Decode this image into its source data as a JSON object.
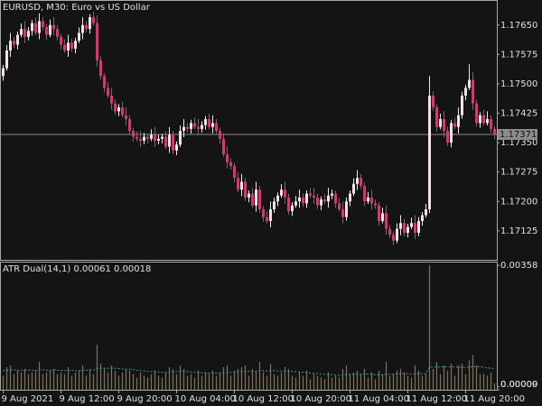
{
  "chart_data": {
    "type": "candlestick",
    "title": "EURUSD, M30:  Euro vs US Dollar",
    "up_color": "#f3e3e8",
    "down_color": "#c4416f",
    "ylim": [
      1.17051,
      1.17714
    ],
    "yticks": [
      {
        "value": 1.1765,
        "label": "1.17650"
      },
      1.17575,
      {
        "value": 1.175,
        "label": "1.17500"
      },
      1.17425,
      {
        "value": 1.1735,
        "label": "1.17350"
      },
      1.17275,
      {
        "value": 1.172,
        "label": "1.17200"
      },
      1.17125
    ],
    "current_price": {
      "value": 1.17371,
      "label": "1.17371"
    },
    "categories": [
      "9 Aug 2021",
      null,
      null,
      null,
      null,
      null,
      null,
      null,
      null,
      null,
      null,
      null,
      null,
      null,
      null,
      null,
      "9 Aug 12:00",
      null,
      null,
      null,
      null,
      null,
      null,
      null,
      null,
      null,
      null,
      null,
      null,
      null,
      null,
      null,
      "9 Aug 20:00",
      null,
      null,
      null,
      null,
      null,
      null,
      null,
      null,
      null,
      null,
      null,
      null,
      null,
      null,
      null,
      "10 Aug 04:00",
      null,
      null,
      null,
      null,
      null,
      null,
      null,
      null,
      null,
      null,
      null,
      null,
      null,
      null,
      null,
      "10 Aug 12:00",
      null,
      null,
      null,
      null,
      null,
      null,
      null,
      null,
      null,
      null,
      null,
      null,
      null,
      null,
      null,
      "10 Aug 20:00",
      null,
      null,
      null,
      null,
      null,
      null,
      null,
      null,
      null,
      null,
      null,
      null,
      null,
      null,
      null,
      "11 Aug 04:00",
      null,
      null,
      null,
      null,
      null,
      null,
      null,
      null,
      null,
      null,
      null,
      null,
      null,
      null,
      null,
      "11 Aug 12:00",
      null,
      null,
      null,
      null,
      null,
      null,
      null,
      null,
      null,
      null,
      null,
      null,
      null,
      null,
      null,
      "11 Aug 20:00",
      null,
      null,
      null,
      null,
      null,
      null,
      null,
      null
    ],
    "candles": [
      [
        1.1752,
        1.17548,
        1.17508,
        1.1754
      ],
      [
        1.1754,
        1.17599,
        1.17534,
        1.17585
      ],
      [
        1.17585,
        1.1763,
        1.17569,
        1.1761
      ],
      [
        1.1761,
        1.1762,
        1.17591,
        1.176
      ],
      [
        1.176,
        1.17633,
        1.17588,
        1.17625
      ],
      [
        1.17625,
        1.17654,
        1.17619,
        1.1764
      ],
      [
        1.1764,
        1.1766,
        1.17604,
        1.1762
      ],
      [
        1.1762,
        1.17645,
        1.17611,
        1.17635
      ],
      [
        1.17635,
        1.17663,
        1.17623,
        1.17655
      ],
      [
        1.17655,
        1.17669,
        1.17624,
        1.1763
      ],
      [
        1.1763,
        1.1768,
        1.17614,
        1.1766
      ],
      [
        1.1766,
        1.1767,
        1.17636,
        1.17645
      ],
      [
        1.17645,
        1.17653,
        1.17613,
        1.17625
      ],
      [
        1.17625,
        1.17664,
        1.17619,
        1.1765
      ],
      [
        1.1765,
        1.1767,
        1.17624,
        1.1764
      ],
      [
        1.1764,
        1.1765,
        1.17611,
        1.1762
      ],
      [
        1.1762,
        1.17628,
        1.17588,
        1.176
      ],
      [
        1.176,
        1.17614,
        1.17579,
        1.17585
      ],
      [
        1.17585,
        1.17625,
        1.17569,
        1.17605
      ],
      [
        1.17605,
        1.17615,
        1.17581,
        1.1759
      ],
      [
        1.1759,
        1.17618,
        1.17578,
        1.1761
      ],
      [
        1.1761,
        1.17644,
        1.17604,
        1.1763
      ],
      [
        1.1763,
        1.1767,
        1.17614,
        1.1765
      ],
      [
        1.1765,
        1.1766,
        1.17631,
        1.1764
      ],
      [
        1.1764,
        1.17678,
        1.17628,
        1.1767
      ],
      [
        1.1767,
        1.17684,
        1.17649,
        1.17655
      ],
      [
        1.17655,
        1.17675,
        1.17544,
        1.1756
      ],
      [
        1.1756,
        1.1757,
        1.17511,
        1.1752
      ],
      [
        1.1752,
        1.17528,
        1.17478,
        1.1749
      ],
      [
        1.1749,
        1.17504,
        1.17464,
        1.1747
      ],
      [
        1.1747,
        1.1749,
        1.17434,
        1.1745
      ],
      [
        1.1745,
        1.1746,
        1.17421,
        1.1743
      ],
      [
        1.1743,
        1.17448,
        1.17418,
        1.1744
      ],
      [
        1.1744,
        1.17454,
        1.17414,
        1.1742
      ],
      [
        1.1742,
        1.1744,
        1.17394,
        1.1741
      ],
      [
        1.1741,
        1.1742,
        1.17371,
        1.1738
      ],
      [
        1.1738,
        1.17388,
        1.17353,
        1.17365
      ],
      [
        1.17365,
        1.17379,
        1.17354,
        1.1736
      ],
      [
        1.1736,
        1.1738,
        1.17339,
        1.17355
      ],
      [
        1.17355,
        1.17375,
        1.17346,
        1.17365
      ],
      [
        1.17365,
        1.17373,
        1.17348,
        1.1736
      ],
      [
        1.1736,
        1.17384,
        1.17354,
        1.1737
      ],
      [
        1.1737,
        1.1739,
        1.17339,
        1.17355
      ],
      [
        1.17355,
        1.1737,
        1.17346,
        1.1736
      ],
      [
        1.1736,
        1.17373,
        1.17348,
        1.17365
      ],
      [
        1.17365,
        1.17379,
        1.17334,
        1.1734
      ],
      [
        1.1734,
        1.1739,
        1.17324,
        1.1737
      ],
      [
        1.1737,
        1.1738,
        1.17321,
        1.1733
      ],
      [
        1.1733,
        1.17353,
        1.17318,
        1.17345
      ],
      [
        1.17345,
        1.17394,
        1.17339,
        1.1738
      ],
      [
        1.1738,
        1.1741,
        1.17364,
        1.1739
      ],
      [
        1.1739,
        1.174,
        1.17376,
        1.17385
      ],
      [
        1.17385,
        1.17408,
        1.17373,
        1.174
      ],
      [
        1.174,
        1.17414,
        1.17384,
        1.1739
      ],
      [
        1.1739,
        1.1741,
        1.17369,
        1.17385
      ],
      [
        1.17385,
        1.17405,
        1.17376,
        1.17395
      ],
      [
        1.17395,
        1.17418,
        1.17383,
        1.1741
      ],
      [
        1.1741,
        1.17424,
        1.17384,
        1.1739
      ],
      [
        1.1739,
        1.1742,
        1.17374,
        1.174
      ],
      [
        1.174,
        1.1741,
        1.17371,
        1.1738
      ],
      [
        1.1738,
        1.17388,
        1.17348,
        1.1736
      ],
      [
        1.1736,
        1.17374,
        1.17314,
        1.1732
      ],
      [
        1.1732,
        1.1734,
        1.17284,
        1.173
      ],
      [
        1.173,
        1.1731,
        1.17281,
        1.1729
      ],
      [
        1.1729,
        1.17298,
        1.17248,
        1.1726
      ],
      [
        1.1726,
        1.17274,
        1.17224,
        1.1723
      ],
      [
        1.1723,
        1.1727,
        1.17214,
        1.1725
      ],
      [
        1.1725,
        1.1726,
        1.17201,
        1.1721
      ],
      [
        1.1721,
        1.17228,
        1.17198,
        1.1722
      ],
      [
        1.1722,
        1.17234,
        1.17184,
        1.1719
      ],
      [
        1.1719,
        1.1725,
        1.17174,
        1.1723
      ],
      [
        1.1723,
        1.1724,
        1.17171,
        1.1718
      ],
      [
        1.1718,
        1.17188,
        1.17148,
        1.1716
      ],
      [
        1.1716,
        1.17174,
        1.17144,
        1.1715
      ],
      [
        1.1715,
        1.172,
        1.17134,
        1.1718
      ],
      [
        1.1718,
        1.1721,
        1.17171,
        1.172
      ],
      [
        1.172,
        1.17223,
        1.17188,
        1.17215
      ],
      [
        1.17215,
        1.17244,
        1.17209,
        1.1723
      ],
      [
        1.1723,
        1.1725,
        1.17194,
        1.1721
      ],
      [
        1.1721,
        1.1722,
        1.17166,
        1.17175
      ],
      [
        1.17175,
        1.17198,
        1.17163,
        1.1719
      ],
      [
        1.1719,
        1.17214,
        1.17184,
        1.172
      ],
      [
        1.172,
        1.1723,
        1.17184,
        1.1721
      ],
      [
        1.1721,
        1.1722,
        1.17186,
        1.17195
      ],
      [
        1.17195,
        1.17228,
        1.17183,
        1.1722
      ],
      [
        1.1722,
        1.17234,
        1.17209,
        1.17215
      ],
      [
        1.17215,
        1.17235,
        1.17194,
        1.1721
      ],
      [
        1.1721,
        1.1722,
        1.17181,
        1.1719
      ],
      [
        1.1719,
        1.17213,
        1.17178,
        1.17205
      ],
      [
        1.17205,
        1.17219,
        1.17194,
        1.172
      ],
      [
        1.172,
        1.17235,
        1.17184,
        1.17215
      ],
      [
        1.17215,
        1.1723,
        1.17206,
        1.1722
      ],
      [
        1.1722,
        1.17228,
        1.17183,
        1.17195
      ],
      [
        1.17195,
        1.17209,
        1.17174,
        1.1718
      ],
      [
        1.1718,
        1.172,
        1.17144,
        1.1716
      ],
      [
        1.1716,
        1.1721,
        1.17151,
        1.172
      ],
      [
        1.172,
        1.17228,
        1.17188,
        1.1722
      ],
      [
        1.1722,
        1.17259,
        1.17214,
        1.17245
      ],
      [
        1.17245,
        1.1728,
        1.17229,
        1.1726
      ],
      [
        1.1726,
        1.1727,
        1.17231,
        1.1724
      ],
      [
        1.1724,
        1.17248,
        1.17188,
        1.172
      ],
      [
        1.172,
        1.17224,
        1.17194,
        1.1721
      ],
      [
        1.1721,
        1.1723,
        1.17179,
        1.17195
      ],
      [
        1.17195,
        1.17205,
        1.17181,
        1.1719
      ],
      [
        1.1719,
        1.17198,
        1.17138,
        1.1715
      ],
      [
        1.1715,
        1.17184,
        1.17144,
        1.1717
      ],
      [
        1.1717,
        1.1719,
        1.17114,
        1.1713
      ],
      [
        1.1713,
        1.1714,
        1.17106,
        1.17115
      ],
      [
        1.17115,
        1.17123,
        1.17088,
        1.171
      ],
      [
        1.171,
        1.17144,
        1.17094,
        1.1713
      ],
      [
        1.1713,
        1.17165,
        1.17114,
        1.17145
      ],
      [
        1.17145,
        1.17155,
        1.17111,
        1.1712
      ],
      [
        1.1712,
        1.17143,
        1.17108,
        1.17135
      ],
      [
        1.17135,
        1.17159,
        1.17129,
        1.17145
      ],
      [
        1.17145,
        1.17165,
        1.17104,
        1.1712
      ],
      [
        1.1712,
        1.1716,
        1.17111,
        1.1715
      ],
      [
        1.1715,
        1.17173,
        1.17138,
        1.17165
      ],
      [
        1.17165,
        1.17194,
        1.17159,
        1.1718
      ],
      [
        1.1718,
        1.1752,
        1.1717,
        1.1747
      ],
      [
        1.1747,
        1.1748,
        1.17431,
        1.1744
      ],
      [
        1.1744,
        1.17448,
        1.17378,
        1.1739
      ],
      [
        1.1739,
        1.17424,
        1.17384,
        1.1741
      ],
      [
        1.1741,
        1.1743,
        1.17364,
        1.1738
      ],
      [
        1.1738,
        1.1739,
        1.17341,
        1.1735
      ],
      [
        1.1735,
        1.17408,
        1.17338,
        1.174
      ],
      [
        1.174,
        1.17414,
        1.17384,
        1.1739
      ],
      [
        1.1739,
        1.1744,
        1.17374,
        1.1742
      ],
      [
        1.1742,
        1.1748,
        1.17411,
        1.1747
      ],
      [
        1.1747,
        1.17498,
        1.17458,
        1.1749
      ],
      [
        1.1749,
        1.1755,
        1.17484,
        1.1751
      ],
      [
        1.1751,
        1.1753,
        1.17434,
        1.1745
      ],
      [
        1.1745,
        1.1746,
        1.17391,
        1.174
      ],
      [
        1.174,
        1.17428,
        1.17388,
        1.1742
      ],
      [
        1.1742,
        1.17434,
        1.17394,
        1.174
      ],
      [
        1.174,
        1.1743,
        1.17394,
        1.1741
      ],
      [
        1.1741,
        1.1742,
        1.17376,
        1.17385
      ],
      [
        1.17385,
        1.17393,
        1.17359,
        1.17371
      ]
    ],
    "indicator": {
      "title": "ATR Dual(14,1) 0.00061 0.00018",
      "ylim": [
        0,
        0.00366
      ],
      "yticks": [
        0.00358,
        {
          "value": 9e-05,
          "label": "0.00009"
        },
        {
          "value": 0,
          "label": "0.00000"
        }
      ],
      "bar_color": "#a5672f",
      "line_color": "#3b9ea3",
      "bars": [
        0.0004,
        0.00065,
        0.0007,
        0.00045,
        0.00055,
        0.0005,
        0.0006,
        0.00045,
        0.0005,
        0.00055,
        0.0008,
        0.00045,
        0.0005,
        0.00055,
        0.0006,
        0.00045,
        0.0005,
        0.00045,
        0.00065,
        0.0004,
        0.0005,
        0.00055,
        0.0007,
        0.0004,
        0.0006,
        0.00045,
        0.0013,
        0.00075,
        0.0006,
        0.0005,
        0.0007,
        0.00055,
        0.0004,
        0.0005,
        0.0006,
        0.00055,
        0.00045,
        0.00035,
        0.0005,
        0.0004,
        0.00035,
        0.00045,
        0.00055,
        0.0004,
        0.00035,
        0.0005,
        0.00065,
        0.0006,
        0.00045,
        0.0007,
        0.0006,
        0.0004,
        0.00045,
        0.00035,
        0.00055,
        0.0004,
        0.0005,
        0.00045,
        0.00055,
        0.0004,
        0.0005,
        0.00065,
        0.0007,
        0.0004,
        0.00055,
        0.0006,
        0.00065,
        0.0007,
        0.0004,
        0.0006,
        0.00055,
        0.0008,
        0.0005,
        0.0004,
        0.00075,
        0.00045,
        0.0004,
        0.0005,
        0.00065,
        0.0006,
        0.0004,
        0.00035,
        0.0005,
        0.0004,
        0.00055,
        0.0003,
        0.00045,
        0.0004,
        0.00035,
        0.0003,
        0.0005,
        0.00035,
        0.0004,
        0.00035,
        0.0006,
        0.0007,
        0.00045,
        0.0005,
        0.00055,
        0.00045,
        0.0006,
        0.00035,
        0.0005,
        0.0003,
        0.00055,
        0.00045,
        0.0008,
        0.0004,
        0.00045,
        0.00055,
        0.0006,
        0.0005,
        0.0004,
        0.00035,
        0.0007,
        0.00055,
        0.0004,
        0.00045,
        0.00358,
        0.0006,
        0.0008,
        0.00045,
        0.0007,
        0.00055,
        0.00075,
        0.0004,
        0.0007,
        0.00075,
        0.00045,
        0.00085,
        0.001,
        0.0007,
        0.00045,
        0.00045,
        0.0004,
        0.0005,
        0.00018
      ],
      "line": [
        0.00055,
        0.00056,
        0.00057,
        0.00057,
        0.00056,
        0.00056,
        0.00057,
        0.00056,
        0.00056,
        0.00056,
        0.00057,
        0.00057,
        0.00056,
        0.00056,
        0.00057,
        0.00056,
        0.00056,
        0.00055,
        0.00056,
        0.00055,
        0.00055,
        0.00055,
        0.00056,
        0.00056,
        0.00057,
        0.00056,
        0.00061,
        0.00062,
        0.00062,
        0.00062,
        0.00062,
        0.00062,
        0.00061,
        0.0006,
        0.00059,
        0.00059,
        0.00058,
        0.00056,
        0.00055,
        0.00054,
        0.00053,
        0.00052,
        0.00052,
        0.00051,
        0.0005,
        0.0005,
        0.00051,
        0.00052,
        0.00052,
        0.00053,
        0.00053,
        0.00052,
        0.00051,
        0.0005,
        0.0005,
        0.00049,
        0.00049,
        0.00048,
        0.00048,
        0.00048,
        0.00048,
        0.00049,
        0.0005,
        0.0005,
        0.0005,
        0.00051,
        0.00052,
        0.00053,
        0.00053,
        0.00053,
        0.00053,
        0.00055,
        0.00055,
        0.00054,
        0.00055,
        0.00055,
        0.00054,
        0.00054,
        0.00054,
        0.00054,
        0.00053,
        0.00052,
        0.00051,
        0.0005,
        0.0005,
        0.00048,
        0.00047,
        0.00046,
        0.00045,
        0.00044,
        0.00044,
        0.00043,
        0.00042,
        0.00041,
        0.00042,
        0.00044,
        0.00044,
        0.00045,
        0.00045,
        0.00045,
        0.00046,
        0.00045,
        0.00045,
        0.00043,
        0.00043,
        0.00043,
        0.00045,
        0.00045,
        0.00045,
        0.00046,
        0.00046,
        0.00047,
        0.00046,
        0.00045,
        0.00046,
        0.00046,
        0.00046,
        0.00046,
        0.00066,
        0.00065,
        0.00066,
        0.00065,
        0.00066,
        0.00066,
        0.00066,
        0.00065,
        0.00065,
        0.00065,
        0.00064,
        0.00065,
        0.00067,
        0.00067,
        0.00066,
        0.00065,
        0.00063,
        0.00062,
        0.00061
      ]
    }
  }
}
